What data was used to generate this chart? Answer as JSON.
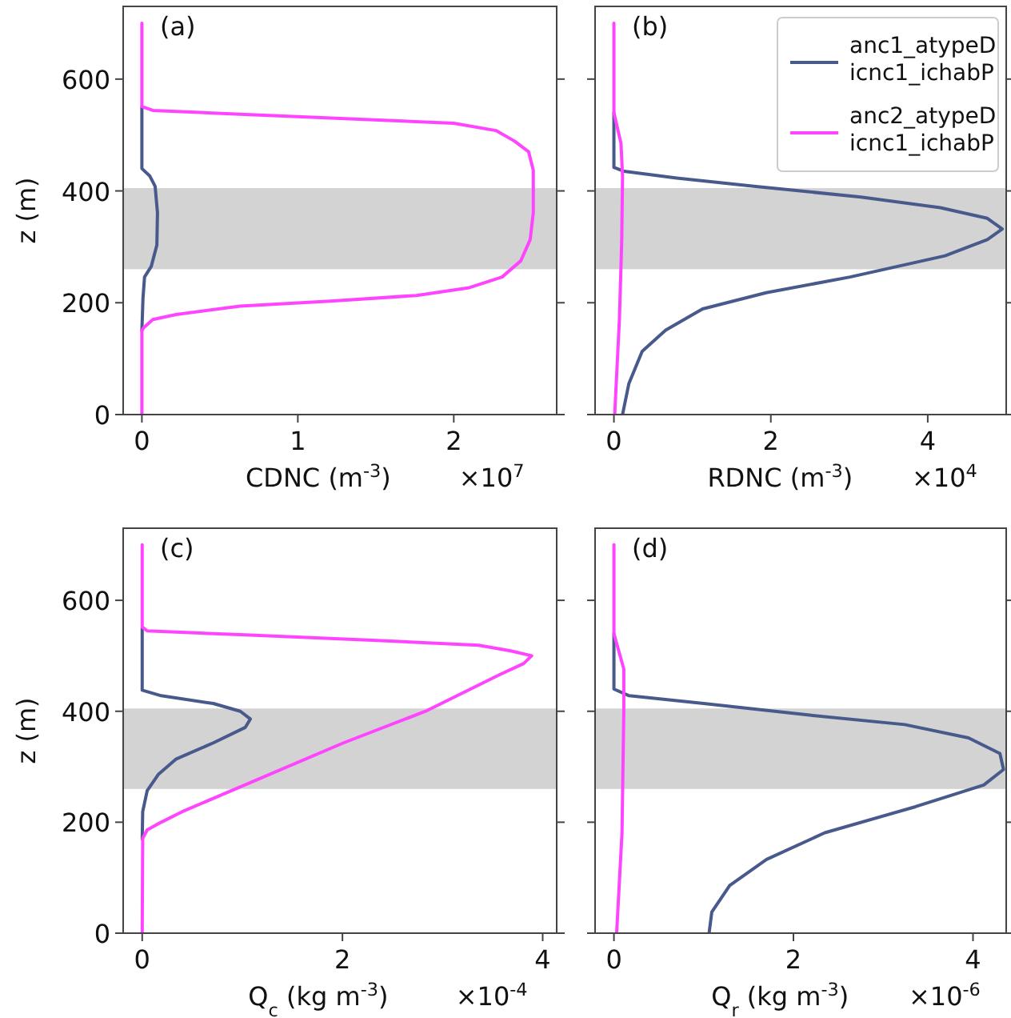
{
  "chart_data": [
    {
      "type": "line",
      "xlabel": "CDNC (m$^{-3}$)",
      "ylabel": "z (m)",
      "annotations": [
        "(a)",
        "×10$^{7}$"
      ],
      "xlim": [
        -0.12,
        2.66
      ],
      "ylim": [
        0,
        730
      ],
      "xticks": [
        0,
        1,
        2
      ],
      "yticks": [
        0,
        200,
        400,
        600
      ],
      "legend": false,
      "bands": [
        {
          "axis": "y",
          "from": 260,
          "to": 405,
          "color": "#d3d3d3"
        }
      ],
      "series": [
        {
          "color": "#485a8c",
          "x": [
            0,
            0,
            0.05,
            0.085,
            0.1,
            0.096,
            0.06,
            0.017,
            0.007,
            0
          ],
          "values": [
            550,
            440,
            427,
            408,
            361,
            303,
            265,
            246,
            208,
            150
          ]
        },
        {
          "color": "#ff44ff",
          "x": [
            0,
            0,
            0.07,
            0.63,
            1.49,
            2.0,
            2.27,
            2.39,
            2.48,
            2.51,
            2.51,
            2.49,
            2.43,
            2.31,
            2.1,
            1.76,
            1.21,
            0.63,
            0.22,
            0.07,
            0.01,
            0,
            0
          ],
          "values": [
            700,
            551,
            544,
            537,
            527,
            521,
            508,
            489,
            470,
            437,
            361,
            313,
            275,
            246,
            227,
            213,
            203,
            194,
            179,
            170,
            155,
            150,
            0
          ]
        }
      ]
    },
    {
      "type": "line",
      "xlabel": "RDNC (m$^{-3}$)",
      "annotations": [
        "(b)",
        "×10$^{4}$"
      ],
      "xlim": [
        -0.24,
        5.0
      ],
      "ylim": [
        0,
        730
      ],
      "xticks": [
        0,
        2,
        4
      ],
      "yticks": [
        0,
        200,
        400,
        600
      ],
      "tick_labels": "x",
      "legend": "top right",
      "bands": [
        {
          "axis": "y",
          "from": 260,
          "to": 405,
          "color": "#d3d3d3"
        }
      ],
      "series": [
        {
          "name": "anc1_atypeD\nicnc1_ichabP",
          "color": "#485a8c",
          "x": [
            0,
            0,
            0.13,
            0.8,
            1.81,
            3.15,
            4.16,
            4.76,
            4.95,
            4.76,
            4.22,
            3.01,
            1.94,
            1.13,
            0.66,
            0.36,
            0.19,
            0.11
          ],
          "values": [
            540,
            442,
            435,
            423,
            408,
            389,
            370,
            351,
            332,
            313,
            284,
            246,
            218,
            189,
            151,
            113,
            55,
            0
          ]
        },
        {
          "name": "anc2_atypeD\nicnc1_ichabP",
          "color": "#ff44ff",
          "x": [
            0,
            0,
            0.09,
            0.11,
            0.1,
            0.07,
            0.01
          ],
          "values": [
            700,
            540,
            485,
            427,
            313,
            170,
            0
          ]
        }
      ]
    },
    {
      "type": "line",
      "xlabel": "Q$_{c}$ (kg m$^{-3}$)",
      "ylabel": "z (m)",
      "annotations": [
        "(c)",
        "×10$^{-4}$"
      ],
      "xlim": [
        -0.19,
        4.14
      ],
      "ylim": [
        0,
        730
      ],
      "xticks": [
        0,
        2,
        4
      ],
      "yticks": [
        0,
        200,
        400,
        600
      ],
      "legend": false,
      "bands": [
        {
          "axis": "y",
          "from": 260,
          "to": 405,
          "color": "#d3d3d3"
        }
      ],
      "series": [
        {
          "color": "#485a8c",
          "x": [
            0,
            0,
            0.19,
            0.71,
            0.98,
            1.08,
            1.03,
            0.71,
            0.34,
            0.16,
            0.05,
            0.005,
            0
          ],
          "values": [
            550,
            438,
            428,
            414,
            400,
            386,
            371,
            343,
            314,
            286,
            257,
            219,
            170
          ]
        },
        {
          "color": "#ff44ff",
          "x": [
            0,
            0,
            0.05,
            0.98,
            2.3,
            3.36,
            3.68,
            3.89,
            3.81,
            3.57,
            2.83,
            2.01,
            0.4,
            0.19,
            0.05,
            0.005,
            0
          ],
          "values": [
            700,
            552,
            545,
            538,
            528,
            519,
            509,
            500,
            486,
            466,
            400,
            343,
            219,
            200,
            186,
            171,
            0
          ]
        }
      ]
    },
    {
      "type": "line",
      "xlabel": "Q$_{r}$ (kg m$^{-3}$)",
      "annotations": [
        "(d)",
        "×10$^{-6}$"
      ],
      "xlim": [
        -0.21,
        4.37
      ],
      "ylim": [
        0,
        730
      ],
      "xticks": [
        0,
        2,
        4
      ],
      "yticks": [
        0,
        200,
        400,
        600
      ],
      "tick_labels": "x",
      "legend": false,
      "bands": [
        {
          "axis": "y",
          "from": 260,
          "to": 405,
          "color": "#d3d3d3"
        }
      ],
      "series": [
        {
          "color": "#485a8c",
          "x": [
            0,
            0,
            0.17,
            1.0,
            2.18,
            3.24,
            3.95,
            4.3,
            4.34,
            4.12,
            3.36,
            2.35,
            1.7,
            1.29,
            1.09,
            1.06
          ],
          "values": [
            540,
            440,
            428,
            414,
            393,
            376,
            352,
            324,
            295,
            267,
            228,
            181,
            133,
            86,
            38,
            0
          ]
        },
        {
          "color": "#ff44ff",
          "x": [
            0,
            0,
            0.11,
            0.11,
            0.09,
            0.03
          ],
          "values": [
            700,
            540,
            476,
            400,
            181,
            0
          ]
        }
      ]
    }
  ]
}
